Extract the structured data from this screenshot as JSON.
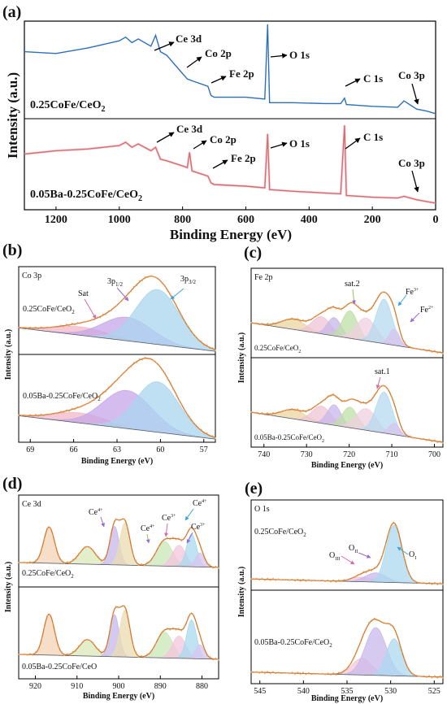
{
  "chart_data": [
    {
      "panel": "(a)",
      "type": "line",
      "xlabel": "Binding Energy (eV)",
      "ylabel": "Intensity (a.u.)",
      "xlim": [
        1300,
        0
      ],
      "x_ticks": [
        "1200",
        "1000",
        "800",
        "600",
        "400",
        "200",
        "0"
      ],
      "x_tick_values": [
        1200,
        1000,
        800,
        600,
        400,
        200,
        0
      ],
      "grid": false,
      "series": [
        {
          "name": "0.25CoFe/CeO2",
          "color": "#2e6fba",
          "x": [
            1300,
            1200,
            1100,
            1000,
            980,
            960,
            940,
            900,
            885,
            870,
            850,
            800,
            785,
            770,
            720,
            710,
            700,
            600,
            540,
            531,
            525,
            450,
            350,
            300,
            288,
            282,
            200,
            120,
            100,
            60,
            30,
            0
          ],
          "y": [
            0.7,
            0.68,
            0.74,
            0.82,
            0.86,
            0.8,
            0.84,
            0.76,
            0.88,
            0.7,
            0.66,
            0.46,
            0.4,
            0.38,
            0.32,
            0.22,
            0.2,
            0.2,
            0.18,
            1.0,
            0.14,
            0.14,
            0.13,
            0.13,
            0.19,
            0.12,
            0.1,
            0.09,
            0.16,
            0.07,
            0.05,
            0.02
          ]
        },
        {
          "name": "0.05Ba-0.25CoFe/CeO2",
          "color": "#b8412c",
          "x": [
            1300,
            1200,
            1100,
            1000,
            980,
            960,
            940,
            900,
            885,
            870,
            850,
            800,
            785,
            778,
            770,
            720,
            710,
            700,
            600,
            540,
            531,
            525,
            450,
            350,
            300,
            288,
            282,
            200,
            120,
            100,
            60,
            30,
            0
          ],
          "y": [
            0.62,
            0.66,
            0.68,
            0.72,
            0.76,
            0.7,
            0.74,
            0.66,
            0.7,
            0.56,
            0.54,
            0.48,
            0.46,
            0.64,
            0.42,
            0.36,
            0.28,
            0.26,
            0.24,
            0.22,
            0.86,
            0.2,
            0.18,
            0.16,
            0.15,
            0.96,
            0.13,
            0.11,
            0.1,
            0.12,
            0.08,
            0.06,
            0.04
          ]
        }
      ],
      "annotations": [
        {
          "label": "0.25CoFe/CeO2",
          "kind": "sample"
        },
        {
          "label": "0.05Ba-0.25CoFe/CeO2",
          "kind": "sample"
        },
        {
          "label": "Ce 3d"
        },
        {
          "label": "Co 2p"
        },
        {
          "label": "Fe 2p"
        },
        {
          "label": "O 1s"
        },
        {
          "label": "C 1s"
        },
        {
          "label": "Co 3p"
        }
      ]
    },
    {
      "panel": "(b)",
      "type": "line",
      "element": "Co 3p",
      "xlabel": "Binding Energy (eV)",
      "ylabel": "Intensity (a.u.)",
      "xlim": [
        69.8,
        56.2
      ],
      "x_ticks": [
        "69",
        "66",
        "63",
        "60",
        "57"
      ],
      "x_tick_values": [
        69,
        66,
        63,
        60,
        57
      ],
      "samples": [
        "0.25CoFe/CeO2",
        "0.05Ba-0.25CoFe/CeO2"
      ],
      "peaks": [
        {
          "label": "Sat",
          "center": 65.5,
          "width": 1.8,
          "color": "#f2b8c8"
        },
        {
          "label": "3p1/2",
          "center": 62.3,
          "width": 1.7,
          "color": "#c5a7e8"
        },
        {
          "label": "3p3/2",
          "center": 60.2,
          "width": 1.5,
          "color": "#a9d5ef"
        }
      ],
      "amplitudes": [
        [
          0.15,
          0.42,
          0.98
        ],
        [
          0.18,
          0.68,
          0.9
        ]
      ]
    },
    {
      "panel": "(c)",
      "type": "line",
      "element": "Fe 2p",
      "xlabel": "Binding Energy (eV)",
      "ylabel": "Intensity (a.u.)",
      "xlim": [
        743,
        698
      ],
      "x_ticks": [
        "740",
        "730",
        "720",
        "710",
        "700"
      ],
      "x_tick_values": [
        740,
        730,
        720,
        710,
        700
      ],
      "samples": [
        "0.25CoFe/CeO2",
        "0.05Ba-0.25CoFe/CeO2"
      ],
      "peaks": [
        {
          "label": "",
          "center": 733.0,
          "width": 2.8,
          "color": "#e9d5a0"
        },
        {
          "label": "",
          "center": 726.5,
          "width": 2.2,
          "color": "#efc4d6"
        },
        {
          "label": "",
          "center": 723.5,
          "width": 1.6,
          "color": "#c7b7ea"
        },
        {
          "label": "sat.2",
          "center": 719.8,
          "width": 1.8,
          "color": "#bfdfa5"
        },
        {
          "label": "sat.1",
          "center": 716.0,
          "width": 2.4,
          "color": "#f0cfe0"
        },
        {
          "label": "Fe3+",
          "center": 711.8,
          "width": 1.9,
          "color": "#b5d9ef"
        },
        {
          "label": "Fe2+",
          "center": 709.4,
          "width": 1.2,
          "color": "#d8c4ef"
        }
      ],
      "amplitudes": [
        [
          0.18,
          0.3,
          0.32,
          0.48,
          0.4,
          0.78,
          0.28
        ],
        [
          0.16,
          0.3,
          0.36,
          0.36,
          0.38,
          0.72,
          0.2
        ]
      ]
    },
    {
      "panel": "(d)",
      "type": "line",
      "element": "Ce 3d",
      "xlabel": "Binding Energy (eV)",
      "ylabel": "Intensity (a.u.)",
      "xlim": [
        924,
        876
      ],
      "x_ticks": [
        "920",
        "910",
        "900",
        "890",
        "880"
      ],
      "x_tick_values": [
        920,
        910,
        900,
        890,
        880
      ],
      "samples": [
        "0.25CoFe/CeO2",
        "0.05Ba-0.25CoFe/CeO"
      ],
      "peaks": [
        {
          "label": "Ce4+",
          "center": 916.7,
          "width": 1.3,
          "color": "#f3d3b6"
        },
        {
          "label": "",
          "center": 907.5,
          "width": 1.9,
          "color": "#d9e9ba"
        },
        {
          "label": "Ce4+",
          "center": 901.0,
          "width": 1.1,
          "color": "#c6b8ea"
        },
        {
          "label": "",
          "center": 898.5,
          "width": 1.2,
          "color": "#e9dcb0"
        },
        {
          "label": "Ce4+",
          "center": 889.0,
          "width": 1.9,
          "color": "#c9e6b7"
        },
        {
          "label": "Ce3+",
          "center": 885.5,
          "width": 1.6,
          "color": "#f3c6dc"
        },
        {
          "label": "Ce4+",
          "center": 882.5,
          "width": 1.2,
          "color": "#a9d9ee"
        },
        {
          "label": "Ce3+",
          "center": 880.5,
          "width": 1.1,
          "color": "#d8c4ef"
        }
      ],
      "amplitudes": [
        [
          0.62,
          0.3,
          0.66,
          0.72,
          0.42,
          0.36,
          0.56,
          0.24
        ],
        [
          0.7,
          0.28,
          0.72,
          0.8,
          0.44,
          0.38,
          0.66,
          0.24
        ]
      ]
    },
    {
      "panel": "(e)",
      "type": "line",
      "element": "O 1s",
      "xlabel": "Binding Energy (eV)",
      "ylabel": "Intensity (a.u.)",
      "xlim": [
        546,
        524
      ],
      "x_ticks": [
        "545",
        "540",
        "535",
        "530",
        "525"
      ],
      "x_tick_values": [
        545,
        540,
        535,
        530,
        525
      ],
      "samples": [
        "0.25CoFe/CeO2",
        "0.05Ba-0.25CoFe/CeO2"
      ],
      "peaks": [
        {
          "label": "OIII",
          "center": 533.3,
          "width": 1.1,
          "color": "#f4c7d8"
        },
        {
          "label": "OII",
          "center": 531.7,
          "width": 1.2,
          "color": "#c9b8ec"
        },
        {
          "label": "OI",
          "center": 529.6,
          "width": 0.9,
          "color": "#abd8ef"
        }
      ],
      "amplitudes": [
        [
          0.08,
          0.16,
          1.0
        ],
        [
          0.28,
          0.8,
          0.62
        ]
      ]
    }
  ],
  "text": {
    "a": {
      "letter": "(a)",
      "s1": "0.25CoFe/CeO",
      "s1sub": "2",
      "s2": "0.05Ba-0.25CoFe/CeO",
      "s2sub": "2",
      "ce3d": "Ce 3d",
      "co2p": "Co 2p",
      "fe2p": "Fe 2p",
      "o1s": "O 1s",
      "c1s": "C 1s",
      "co3p": "Co 3p",
      "ylabel": "Intensity (a.u.)",
      "xlabel": "Binding Energy (eV)"
    },
    "b": {
      "letter": "(b)",
      "el": "Co 3p",
      "s1": "0.25CoFe/CeO",
      "s1sub": "2",
      "s2": "0.05Ba-0.25CoFe/CeO",
      "s2sub": "2",
      "sat": "Sat",
      "p12": "3p",
      "p12sub": "1/2",
      "p32": "3p",
      "p32sub": "3/2",
      "ylabel": "Intensity (a.u.)",
      "xlabel": "Binding Energy (eV)"
    },
    "c": {
      "letter": "(c)",
      "el": "Fe 2p",
      "s1": "0.25CoFe/CeO",
      "s1sub": "2",
      "s2": "0.05Ba-0.25CoFe/CeO",
      "s2sub": "2",
      "sat2": "sat.2",
      "sat1": "sat.1",
      "fe3": "Fe",
      "fe3sup": "3+",
      "fe2": "Fe",
      "fe2sup": "2+",
      "ylabel": "Intensity (a.u.)",
      "xlabel": "Binding Energy (eV)"
    },
    "d": {
      "letter": "(d)",
      "el": "Ce 3d",
      "s1": "0.25CoFe/CeO",
      "s1sub": "2",
      "s2": "0.05Ba-0.25CoFe/CeO",
      "ce": "Ce",
      "sup4": "4+",
      "sup3": "3+",
      "ylabel": "Intensity (a.u.)",
      "xlabel": "Binding Energy (eV)"
    },
    "e": {
      "letter": "(e)",
      "el": "O 1s",
      "s1": "0.25CoFe/CeO",
      "s1sub": "2",
      "s2": "0.05Ba-0.25CoFe/CeO",
      "s2sub": "2",
      "o": "O",
      "oIII": "III",
      "oII": "II",
      "oI": "I",
      "ylabel": "Intensity (a.u.)",
      "xlabel": "Binding Energy (eV)"
    }
  }
}
